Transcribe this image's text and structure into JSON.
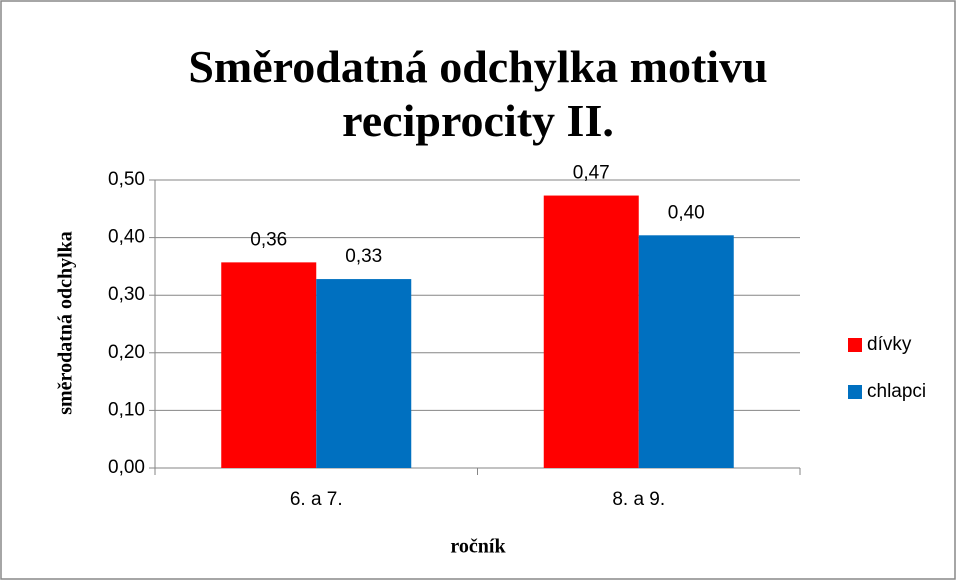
{
  "chart_data": {
    "type": "bar",
    "title": "Směrodatná odchylka motivu reciprocity II.",
    "x_label": "ročník",
    "y_label": "směrodatná odchylka",
    "categories": [
      "6. a 7.",
      "8. a 9."
    ],
    "series": [
      {
        "name": "dívky",
        "color": "#ff0000",
        "values": [
          0.357,
          0.473
        ],
        "value_labels": [
          "0,36",
          "0,47"
        ]
      },
      {
        "name": "chlapci",
        "color": "#0070c0",
        "values": [
          0.328,
          0.404
        ],
        "value_labels": [
          "0,33",
          "0,40"
        ]
      }
    ],
    "ylim": [
      0,
      0.5
    ],
    "yticks": [
      {
        "value": 0,
        "label": "0,00"
      },
      {
        "value": 0.1,
        "label": "0,10"
      },
      {
        "value": 0.2,
        "label": "0,20"
      },
      {
        "value": 0.3,
        "label": "0,30"
      },
      {
        "value": 0.4,
        "label": "0,40"
      },
      {
        "value": 0.5,
        "label": "0,50"
      }
    ],
    "grid": true,
    "legend": "right"
  }
}
